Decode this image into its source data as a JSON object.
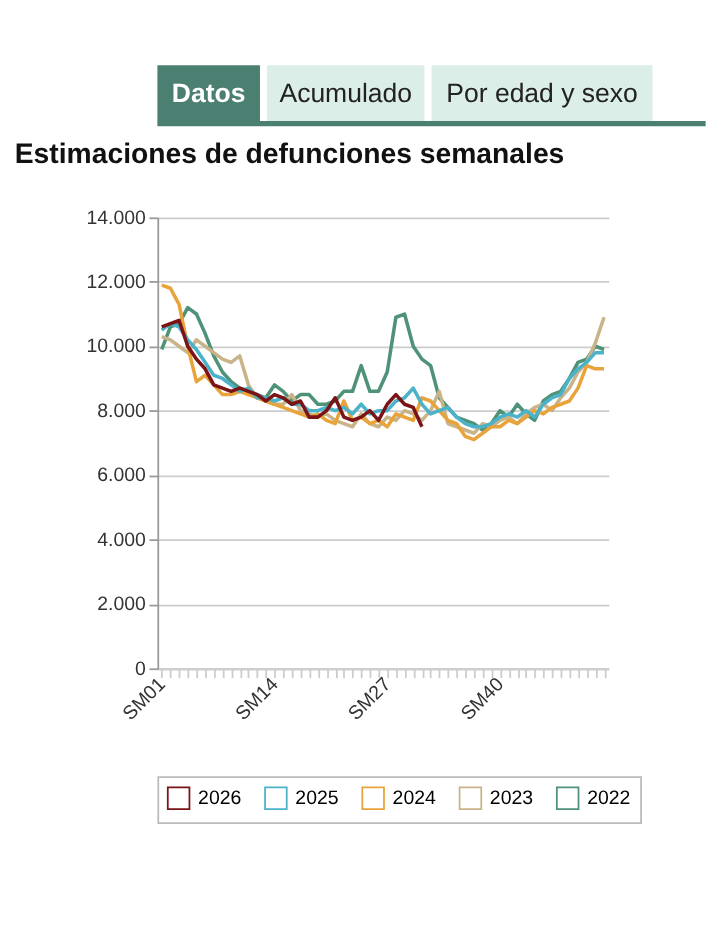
{
  "chart_data": {
    "type": "line",
    "annotations": [
      "Datos",
      "Acumulado",
      "Por edad y sexo"
    ],
    "title": "Estimaciones de defunciones semanales",
    "categories": [
      "SM01",
      null,
      null,
      null,
      null,
      null,
      null,
      null,
      null,
      null,
      null,
      null,
      null,
      "SM14",
      null,
      null,
      null,
      null,
      null,
      null,
      null,
      null,
      null,
      null,
      null,
      null,
      "SM27",
      null,
      null,
      null,
      null,
      null,
      null,
      null,
      null,
      null,
      null,
      null,
      null,
      "SM40",
      null,
      null,
      null,
      null,
      null,
      null,
      null,
      null,
      null,
      null,
      null,
      null
    ],
    "series": [
      {
        "name": "2026",
        "color": "#7b1416",
        "values": [
          10600,
          10700,
          10800,
          10000,
          9600,
          9300,
          8800,
          8700,
          8600,
          8700,
          8600,
          8500,
          8300,
          8500,
          8400,
          8200,
          8300,
          7800,
          7800,
          8000,
          8400,
          7800,
          7700,
          7800,
          8000,
          7700,
          8200,
          8500,
          8200,
          8100,
          7500,
          null,
          null,
          null,
          null,
          null,
          null,
          null,
          null,
          null,
          null,
          null,
          null,
          null,
          null,
          null,
          null,
          null,
          null,
          null,
          null,
          null
        ]
      },
      {
        "name": "2025",
        "color": "#4bb3c9",
        "values": [
          10500,
          10700,
          10600,
          10200,
          9900,
          9500,
          9100,
          9000,
          8800,
          8600,
          8700,
          8400,
          8400,
          8300,
          8400,
          8200,
          8200,
          8000,
          8000,
          8100,
          8000,
          8100,
          7900,
          8200,
          7900,
          8000,
          8000,
          8300,
          8400,
          8700,
          8200,
          7900,
          8000,
          8100,
          7800,
          7600,
          7500,
          7500,
          7600,
          7800,
          7900,
          7800,
          8000,
          7800,
          8200,
          8400,
          8500,
          9000,
          9300,
          9500,
          9800,
          9800
        ]
      },
      {
        "name": "2024",
        "color": "#e8a43a",
        "values": [
          11900,
          11800,
          11300,
          10000,
          8900,
          9100,
          8800,
          8500,
          8500,
          8600,
          8500,
          8400,
          8300,
          8200,
          8100,
          8000,
          7900,
          7800,
          7900,
          7700,
          7600,
          8300,
          7700,
          7800,
          7600,
          7700,
          7500,
          7900,
          7800,
          7700,
          8400,
          8300,
          8000,
          7700,
          7600,
          7200,
          7100,
          7300,
          7500,
          7500,
          7700,
          7600,
          7800,
          8000,
          7900,
          8100,
          8200,
          8300,
          8700,
          9400,
          9300,
          9300
        ]
      },
      {
        "name": "2023",
        "color": "#c9b48a",
        "values": [
          10300,
          10200,
          10000,
          9800,
          10200,
          10000,
          9800,
          9600,
          9500,
          9700,
          8800,
          8400,
          8300,
          8200,
          8200,
          8500,
          8000,
          7900,
          7800,
          7900,
          7700,
          7600,
          7500,
          7900,
          7600,
          7500,
          7800,
          7700,
          8000,
          7900,
          7700,
          8000,
          8600,
          7600,
          7500,
          7400,
          7300,
          7600,
          7500,
          7700,
          7800,
          7600,
          7900,
          8100,
          8200,
          8000,
          8400,
          8700,
          9200,
          9500,
          10100,
          10900
        ]
      },
      {
        "name": "2022",
        "color": "#4e9378",
        "values": [
          9900,
          10600,
          10700,
          11200,
          11000,
          10400,
          9700,
          9200,
          8900,
          8700,
          8600,
          8500,
          8400,
          8800,
          8600,
          8300,
          8500,
          8500,
          8200,
          8200,
          8300,
          8600,
          8600,
          9400,
          8600,
          8600,
          9200,
          10900,
          11000,
          10000,
          9600,
          9400,
          8400,
          8100,
          7800,
          7700,
          7600,
          7400,
          7600,
          8000,
          7800,
          8200,
          7900,
          7700,
          8300,
          8500,
          8600,
          9000,
          9500,
          9600,
          10000,
          9900
        ]
      }
    ],
    "ylim": [
      0,
      14000
    ],
    "yticks": [
      {
        "value": 0,
        "label": "0"
      },
      {
        "value": 2000,
        "label": "2.000"
      },
      {
        "value": 4000,
        "label": "4.000"
      },
      {
        "value": 6000,
        "label": "6.000"
      },
      {
        "value": 8000,
        "label": "8.000"
      },
      {
        "value": 10000,
        "label": "10.000"
      },
      {
        "value": 12000,
        "label": "12.000"
      },
      {
        "value": 14000,
        "label": "14.000"
      }
    ],
    "grid": "y",
    "legend": "bottom",
    "marker": "none",
    "line_style": "solid"
  }
}
